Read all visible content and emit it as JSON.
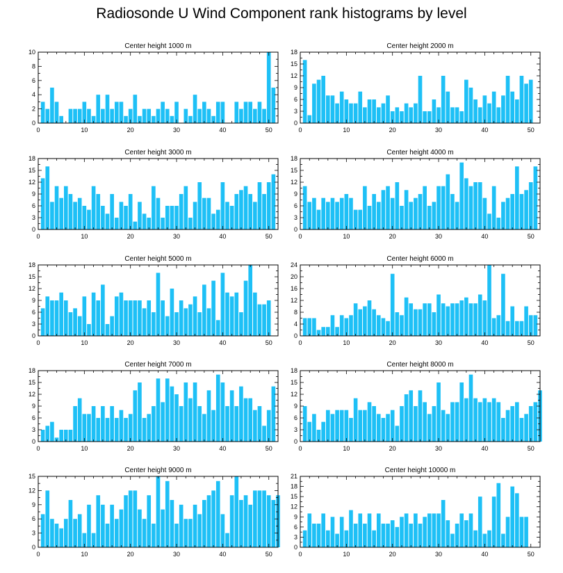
{
  "title": "Radiosonde U Wind Component rank histograms by level",
  "colors": {
    "bar": "#1ec0f6",
    "bar_edge": "#ffffff",
    "axis": "#000000"
  },
  "chart_data": [
    {
      "type": "bar",
      "title": "Center height 1000 m",
      "ylim": [
        0,
        10
      ],
      "yticks": [
        0,
        2,
        4,
        6,
        8,
        10
      ],
      "xticks": [
        0,
        10,
        20,
        30,
        40,
        50
      ],
      "values": [
        3,
        2,
        5,
        3,
        1,
        0,
        2,
        2,
        2,
        3,
        2,
        1,
        4,
        2,
        4,
        2,
        3,
        3,
        1,
        2,
        4,
        1,
        2,
        2,
        1,
        2,
        3,
        2,
        1,
        3,
        0,
        2,
        1,
        4,
        2,
        3,
        2,
        1,
        3,
        3,
        0,
        0,
        3,
        2,
        3,
        3,
        2,
        3,
        2,
        10,
        5
      ]
    },
    {
      "type": "bar",
      "title": "Center height 2000 m",
      "ylim": [
        0,
        18
      ],
      "yticks": [
        0,
        3,
        6,
        9,
        12,
        15,
        18
      ],
      "xticks": [
        0,
        10,
        20,
        30,
        40,
        50
      ],
      "values": [
        16,
        2,
        10,
        11,
        12,
        7,
        7,
        5,
        8,
        6,
        5,
        5,
        8,
        4,
        6,
        6,
        4,
        5,
        7,
        3,
        4,
        3,
        5,
        4,
        5,
        12,
        3,
        3,
        6,
        4,
        12,
        8,
        4,
        4,
        3,
        11,
        9,
        6,
        4,
        7,
        5,
        8,
        4,
        7,
        12,
        8,
        6,
        12,
        10,
        11
      ]
    },
    {
      "type": "bar",
      "title": "Center height 3000 m",
      "ylim": [
        0,
        18
      ],
      "yticks": [
        0,
        3,
        6,
        9,
        12,
        15,
        18
      ],
      "xticks": [
        0,
        10,
        20,
        30,
        40,
        50
      ],
      "values": [
        13,
        16,
        7,
        11,
        8,
        11,
        9,
        7,
        8,
        6,
        5,
        11,
        9,
        6,
        4,
        9,
        3,
        7,
        6,
        9,
        2,
        7,
        4,
        3,
        11,
        8,
        3,
        6,
        6,
        6,
        9,
        11,
        3,
        7,
        12,
        8,
        8,
        4,
        5,
        12,
        7,
        6,
        9,
        10,
        11,
        9,
        7,
        12,
        9,
        12,
        14
      ]
    },
    {
      "type": "bar",
      "title": "Center height 4000 m",
      "ylim": [
        0,
        18
      ],
      "yticks": [
        0,
        3,
        6,
        9,
        12,
        15,
        18
      ],
      "xticks": [
        0,
        10,
        20,
        30,
        40,
        50
      ],
      "values": [
        11,
        7,
        8,
        5,
        8,
        7,
        8,
        7,
        8,
        9,
        8,
        5,
        5,
        11,
        6,
        9,
        7,
        10,
        11,
        8,
        12,
        6,
        10,
        7,
        8,
        9,
        11,
        6,
        7,
        11,
        11,
        14,
        9,
        7,
        17,
        13,
        11,
        12,
        12,
        8,
        4,
        11,
        3,
        7,
        8,
        9,
        16,
        9,
        10,
        12,
        16
      ]
    },
    {
      "type": "bar",
      "title": "Center height 5000 m",
      "ylim": [
        0,
        18
      ],
      "yticks": [
        0,
        3,
        6,
        9,
        12,
        15,
        18
      ],
      "xticks": [
        0,
        10,
        20,
        30,
        40,
        50
      ],
      "values": [
        7,
        10,
        9,
        9,
        11,
        9,
        6,
        7,
        5,
        10,
        3,
        11,
        9,
        13,
        3,
        5,
        10,
        11,
        9,
        9,
        9,
        9,
        7,
        9,
        6,
        16,
        9,
        5,
        12,
        6,
        9,
        7,
        8,
        10,
        6,
        13,
        7,
        14,
        4,
        16,
        11,
        10,
        11,
        6,
        14,
        18,
        11,
        8,
        8,
        9
      ]
    },
    {
      "type": "bar",
      "title": "Center height 6000 m",
      "ylim": [
        0,
        24
      ],
      "yticks": [
        0,
        4,
        8,
        12,
        16,
        20,
        24
      ],
      "xticks": [
        0,
        10,
        20,
        30,
        40,
        50
      ],
      "values": [
        6,
        6,
        6,
        2,
        3,
        3,
        7,
        3,
        7,
        6,
        7,
        11,
        9,
        10,
        12,
        9,
        7,
        6,
        5,
        21,
        8,
        7,
        13,
        11,
        9,
        9,
        11,
        11,
        8,
        14,
        11,
        10,
        11,
        11,
        12,
        13,
        11,
        11,
        14,
        12,
        24,
        6,
        7,
        21,
        5,
        10,
        5,
        5,
        10,
        7,
        7
      ]
    },
    {
      "type": "bar",
      "title": "Center height 7000 m",
      "ylim": [
        0,
        18
      ],
      "yticks": [
        0,
        3,
        6,
        9,
        12,
        15,
        18
      ],
      "xticks": [
        0,
        10,
        20,
        30,
        40,
        50
      ],
      "values": [
        3,
        4,
        5,
        1,
        3,
        3,
        3,
        9,
        11,
        7,
        7,
        9,
        6,
        9,
        6,
        9,
        6,
        8,
        6,
        7,
        13,
        15,
        6,
        7,
        9,
        16,
        10,
        16,
        14,
        12,
        9,
        15,
        11,
        15,
        9,
        7,
        13,
        8,
        17,
        15,
        9,
        13,
        9,
        14,
        11,
        11,
        8,
        9,
        4,
        8,
        14
      ]
    },
    {
      "type": "bar",
      "title": "Center height 8000 m",
      "ylim": [
        0,
        18
      ],
      "yticks": [
        0,
        3,
        6,
        9,
        12,
        15,
        18
      ],
      "xticks": [
        0,
        10,
        20,
        30,
        40,
        50
      ],
      "values": [
        9,
        5,
        7,
        3,
        5,
        8,
        7,
        8,
        8,
        8,
        6,
        11,
        8,
        8,
        10,
        9,
        7,
        6,
        7,
        8,
        4,
        9,
        12,
        13,
        9,
        13,
        10,
        7,
        9,
        15,
        8,
        7,
        10,
        10,
        15,
        11,
        17,
        11,
        10,
        11,
        10,
        11,
        10,
        6,
        8,
        9,
        10,
        6,
        7,
        9,
        10,
        13
      ]
    },
    {
      "type": "bar",
      "title": "Center height 9000 m",
      "ylim": [
        0,
        15
      ],
      "yticks": [
        0,
        3,
        6,
        9,
        12,
        15
      ],
      "xticks": [
        0,
        10,
        20,
        30,
        40,
        50
      ],
      "values": [
        7,
        12,
        6,
        5,
        4,
        6,
        10,
        6,
        7,
        3,
        9,
        3,
        11,
        9,
        5,
        9,
        6,
        8,
        11,
        12,
        12,
        8,
        6,
        11,
        5,
        15,
        8,
        14,
        10,
        5,
        9,
        6,
        6,
        9,
        7,
        10,
        11,
        12,
        14,
        7,
        3,
        11,
        15,
        10,
        11,
        9,
        12,
        12,
        12,
        11,
        10,
        11
      ]
    },
    {
      "type": "bar",
      "title": "Center height 10000 m",
      "ylim": [
        0,
        21
      ],
      "yticks": [
        0,
        3,
        6,
        9,
        12,
        15,
        18,
        21
      ],
      "xticks": [
        0,
        10,
        20,
        30,
        40,
        50
      ],
      "values": [
        5,
        10,
        7,
        7,
        10,
        5,
        9,
        4,
        9,
        5,
        11,
        7,
        10,
        7,
        10,
        5,
        10,
        7,
        7,
        8,
        6,
        9,
        10,
        7,
        10,
        7,
        9,
        10,
        10,
        10,
        14,
        8,
        4,
        7,
        10,
        8,
        10,
        5,
        15,
        4,
        5,
        15,
        19,
        4,
        9,
        18,
        16,
        9,
        9
      ]
    }
  ]
}
